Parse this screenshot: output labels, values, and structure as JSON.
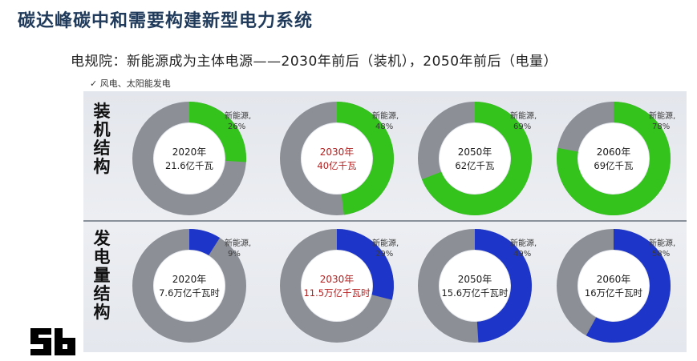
{
  "header": {
    "title": "碳达峰碳中和需要构建新型电力系统",
    "subtitle": "电规院：新能源成为主体电源——2030年前后（装机），2050年前后（电量）",
    "note": "✓ 风电、太阳能发电"
  },
  "rows": {
    "capacity_label": "装机结构",
    "generation_label": "发电量结构"
  },
  "colors": {
    "gray": "#8c8f96",
    "green": "#34c21d",
    "blue": "#1e35c9",
    "year_dark": "#1a1a1a",
    "year_red": "#b02020"
  },
  "chart_data": [
    {
      "type": "pie",
      "name": "capacity",
      "items": [
        {
          "year": "2020年",
          "total": "21.6亿千瓦",
          "label": "新能源,",
          "pct_text": "26%",
          "value": 26,
          "red": false
        },
        {
          "year": "2030年",
          "total": "40亿千瓦",
          "label": "新能源,",
          "pct_text": "48%",
          "value": 48,
          "red": true
        },
        {
          "year": "2050年",
          "total": "62亿千瓦",
          "label": "新能源,",
          "pct_text": "69%",
          "value": 69,
          "red": false
        },
        {
          "year": "2060年",
          "total": "69亿千瓦",
          "label": "新能源,",
          "pct_text": "78%",
          "value": 78,
          "red": false
        }
      ]
    },
    {
      "type": "pie",
      "name": "generation",
      "items": [
        {
          "year": "2020年",
          "total": "7.6万亿千瓦时",
          "label": "新能源,",
          "pct_text": "9%",
          "value": 9,
          "red": false
        },
        {
          "year": "2030年",
          "total": "11.5万亿千瓦时",
          "label": "新能源,",
          "pct_text": "29%",
          "value": 29,
          "red": true
        },
        {
          "year": "2050年",
          "total": "15.6万亿千瓦时",
          "label": "新能源,",
          "pct_text": "49%",
          "value": 49,
          "red": false
        },
        {
          "year": "2060年",
          "total": "16万亿千瓦时",
          "label": "新能源,",
          "pct_text": "58%",
          "value": 58,
          "red": false
        }
      ]
    }
  ]
}
